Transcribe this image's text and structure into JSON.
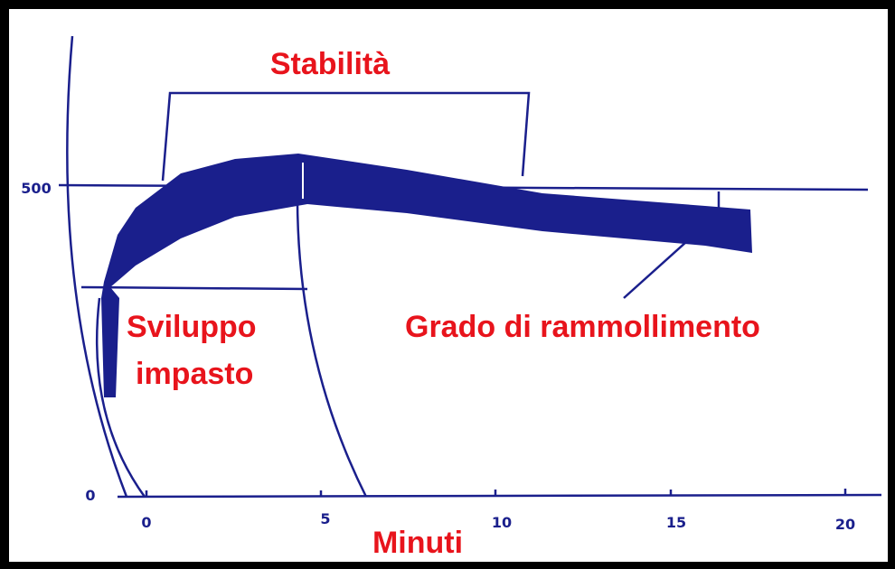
{
  "labels": {
    "stability": "Stabilità",
    "development_1": "Sviluppo",
    "development_2": "impasto",
    "softening": "Grado di rammollimento",
    "x_axis": "Minuti"
  },
  "x_ticks": [
    "0",
    "5",
    "10",
    "15",
    "20"
  ],
  "y_ticks": [
    "500",
    "0"
  ]
}
